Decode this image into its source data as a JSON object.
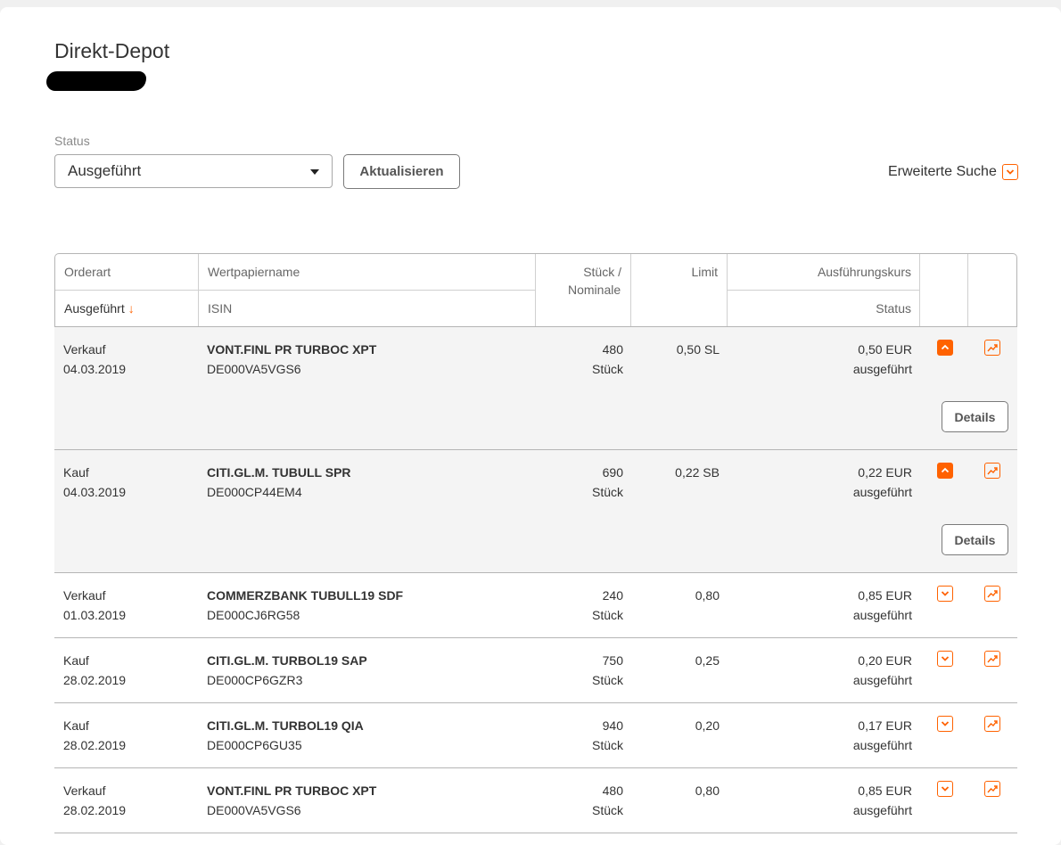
{
  "page": {
    "title": "Direkt-Depot",
    "status_label": "Status",
    "status_value": "Ausgeführt",
    "refresh_label": "Aktualisieren",
    "extended_search_label": "Erweiterte Suche"
  },
  "colors": {
    "accent": "#ff6200",
    "expanded_row": "#f4f4f4"
  },
  "table": {
    "headers": {
      "orderart": "Orderart",
      "ausgefuehrt": "Ausgeführt",
      "sort_arrow": "↓",
      "wertpapiername": "Wertpapiername",
      "isin": "ISIN",
      "stueck_line1": "Stück /",
      "stueck_line2": "Nominale",
      "limit": "Limit",
      "kurs": "Ausführungskurs",
      "status": "Status"
    },
    "details_label": "Details",
    "rows": [
      {
        "type": "Verkauf",
        "date": "04.03.2019",
        "name": "VONT.FINL PR TURBOC XPT",
        "isin": "DE000VA5VGS6",
        "qty": "480",
        "unit": "Stück",
        "limit": "0,50 SL",
        "price": "0,50 EUR",
        "status": "ausgeführt",
        "expanded": true
      },
      {
        "type": "Kauf",
        "date": "04.03.2019",
        "name": "CITI.GL.M. TUBULL SPR",
        "isin": "DE000CP44EM4",
        "qty": "690",
        "unit": "Stück",
        "limit": "0,22 SB",
        "price": "0,22 EUR",
        "status": "ausgeführt",
        "expanded": true
      },
      {
        "type": "Verkauf",
        "date": "01.03.2019",
        "name": "COMMERZBANK TUBULL19 SDF",
        "isin": "DE000CJ6RG58",
        "qty": "240",
        "unit": "Stück",
        "limit": "0,80",
        "price": "0,85 EUR",
        "status": "ausgeführt",
        "expanded": false
      },
      {
        "type": "Kauf",
        "date": "28.02.2019",
        "name": "CITI.GL.M. TURBOL19 SAP",
        "isin": "DE000CP6GZR3",
        "qty": "750",
        "unit": "Stück",
        "limit": "0,25",
        "price": "0,20 EUR",
        "status": "ausgeführt",
        "expanded": false
      },
      {
        "type": "Kauf",
        "date": "28.02.2019",
        "name": "CITI.GL.M. TURBOL19 QIA",
        "isin": "DE000CP6GU35",
        "qty": "940",
        "unit": "Stück",
        "limit": "0,20",
        "price": "0,17 EUR",
        "status": "ausgeführt",
        "expanded": false
      },
      {
        "type": "Verkauf",
        "date": "28.02.2019",
        "name": "VONT.FINL PR TURBOC XPT",
        "isin": "DE000VA5VGS6",
        "qty": "480",
        "unit": "Stück",
        "limit": "0,80",
        "price": "0,85 EUR",
        "status": "ausgeführt",
        "expanded": false
      }
    ]
  },
  "icons": {
    "select_caret": "caret-down-icon",
    "extended_search": "chevron-down-icon",
    "row_collapse": "chevron-up-icon",
    "row_expand": "chevron-down-icon",
    "row_chart": "chart-trend-icon"
  }
}
